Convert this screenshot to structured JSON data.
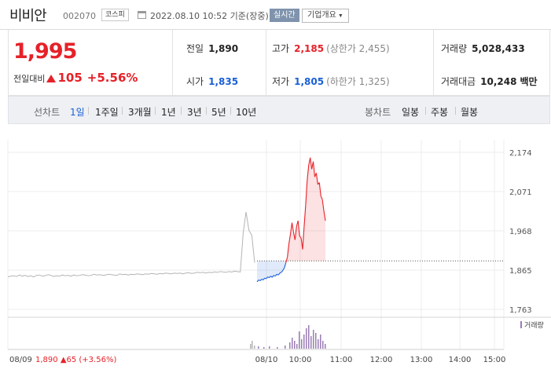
{
  "header": {
    "name": "비비안",
    "code": "002070",
    "market": "코스피",
    "datetime": "2022.08.10 10:52 기준(장중)",
    "realtime": "실시간",
    "overview": "기업개요"
  },
  "summary": {
    "price": "1,995",
    "change_label": "전일대비",
    "change_value": "105",
    "change_pct": "+5.56%",
    "prev_close_label": "전일",
    "prev_close": "1,890",
    "open_label": "시가",
    "open": "1,835",
    "high_label": "고가",
    "high": "2,185",
    "upper_limit": "(상한가 2,455)",
    "low_label": "저가",
    "low": "1,805",
    "lower_limit": "(하한가 1,325)",
    "volume_label": "거래량",
    "volume": "5,028,433",
    "amount_label": "거래대금",
    "amount": "10,248",
    "amount_unit": "백만"
  },
  "periods": {
    "line_label": "선차트",
    "line_items": [
      "1일",
      "1주일",
      "3개월",
      "1년",
      "3년",
      "5년",
      "10년"
    ],
    "active": "1일",
    "candle_label": "봉차트",
    "candle_items": [
      "일봉",
      "주봉",
      "월봉"
    ]
  },
  "colors": {
    "up": "#e62128",
    "down": "#1a5fd6",
    "accent": "#7f93ad"
  },
  "chart_data": {
    "type": "line",
    "y_ticks": [
      "2,174",
      "2,071",
      "1,968",
      "1,865",
      "1,763"
    ],
    "ylim": [
      1763,
      2174
    ],
    "prev_close": 1890,
    "x_ticks": [
      "08/10",
      "10:00",
      "11:00",
      "12:00",
      "13:00",
      "14:00",
      "15:00"
    ],
    "prev_day_label": "08/09",
    "prev_day_summary": {
      "close": "1,890",
      "change": "65",
      "pct": "(+3.56%)"
    },
    "volume_legend": "거래량",
    "series": [
      {
        "values_prev_day": [
          1848,
          1850,
          1851,
          1849,
          1853,
          1850,
          1852,
          1849,
          1851,
          1848,
          1852,
          1853,
          1850,
          1851,
          1854,
          1852,
          1849,
          1851,
          1850,
          1853,
          1851,
          1852,
          1850,
          1853,
          1851,
          1852,
          1854,
          1853,
          1851,
          1852,
          1855,
          1853,
          1854,
          1852,
          1853,
          1855,
          1854,
          1853,
          1852,
          1856,
          1854,
          1855,
          1853,
          1855,
          1854,
          1856,
          1855,
          1854,
          1856,
          1855,
          1857,
          1856,
          1855,
          1857,
          1856,
          1858,
          1857,
          1856,
          1858,
          1857,
          1858,
          1856,
          1858,
          1859,
          1857,
          1858,
          1860,
          1859,
          1860,
          1858,
          1860,
          1859,
          1861,
          1860,
          1862,
          1861,
          1860,
          1862,
          1861,
          1863,
          1862,
          1861,
          1963,
          2018,
          1970,
          1957,
          1885
        ]
      },
      {
        "values_today": [
          1835,
          1840,
          1838,
          1842,
          1840,
          1845,
          1843,
          1848,
          1846,
          1850,
          1847,
          1852,
          1850,
          1855,
          1853,
          1858,
          1860,
          1865,
          1872,
          1885,
          1900,
          1935,
          1960,
          1990,
          1965,
          1945,
          1980,
          1995,
          1955,
          1950,
          1920,
          1980,
          2035,
          2100,
          2140,
          2160,
          2130,
          2150,
          2110,
          2120,
          2090,
          2095,
          2060,
          2050,
          2020,
          1995
        ]
      }
    ]
  }
}
